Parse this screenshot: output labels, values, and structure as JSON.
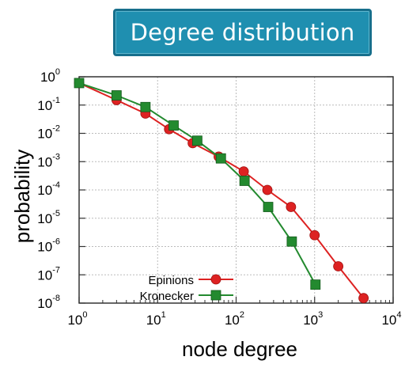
{
  "header": {
    "title": "Degree distribution"
  },
  "chart_data": {
    "type": "line",
    "xlabel": "node degree",
    "ylabel": "probability",
    "xscale": "log",
    "yscale": "log",
    "xlim": [
      1,
      10000
    ],
    "ylim": [
      1e-08,
      1
    ],
    "x_ticks": [
      {
        "value": 1,
        "base": "10",
        "exp": "0"
      },
      {
        "value": 10,
        "base": "10",
        "exp": "1"
      },
      {
        "value": 100,
        "base": "10",
        "exp": "2"
      },
      {
        "value": 1000,
        "base": "10",
        "exp": "3"
      },
      {
        "value": 10000,
        "base": "10",
        "exp": "4"
      }
    ],
    "y_ticks": [
      {
        "value": 1,
        "base": "10",
        "exp": "0"
      },
      {
        "value": 0.1,
        "base": "10",
        "exp": "-1"
      },
      {
        "value": 0.01,
        "base": "10",
        "exp": "-2"
      },
      {
        "value": 0.001,
        "base": "10",
        "exp": "-3"
      },
      {
        "value": 0.0001,
        "base": "10",
        "exp": "-4"
      },
      {
        "value": 1e-05,
        "base": "10",
        "exp": "-5"
      },
      {
        "value": 1e-06,
        "base": "10",
        "exp": "-6"
      },
      {
        "value": 1e-07,
        "base": "10",
        "exp": "-7"
      },
      {
        "value": 1e-08,
        "base": "10",
        "exp": "-8"
      }
    ],
    "legend_position": "bottom-left",
    "series": [
      {
        "name": "Epinions",
        "marker": "circle",
        "color": "#dd2222",
        "x": [
          1,
          3,
          7,
          14,
          28,
          60,
          125,
          250,
          500,
          1000,
          2000,
          4200
        ],
        "y": [
          0.6,
          0.15,
          0.05,
          0.014,
          0.0045,
          0.0015,
          0.00045,
          0.0001,
          2.5e-05,
          2.5e-06,
          2e-07,
          1.5e-08
        ]
      },
      {
        "name": "Kronecker",
        "marker": "square",
        "color": "#238a2f",
        "x": [
          1,
          3,
          7,
          16,
          32,
          64,
          128,
          256,
          512,
          1024
        ],
        "y": [
          0.6,
          0.22,
          0.085,
          0.019,
          0.0055,
          0.0013,
          0.00021,
          2.5e-05,
          1.5e-06,
          4.5e-08
        ]
      }
    ]
  }
}
